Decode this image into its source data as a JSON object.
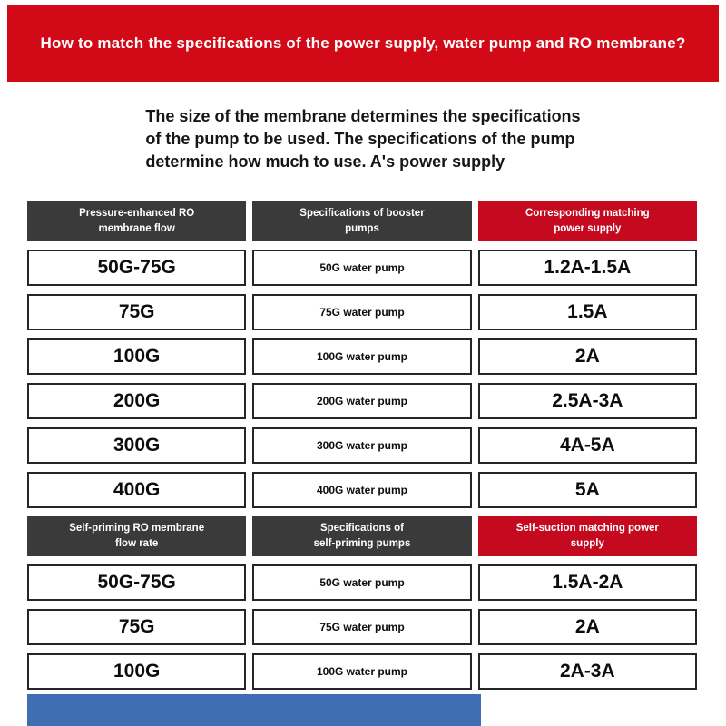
{
  "banner": {
    "title": "How to match the specifications of the power supply, water pump and RO membrane?"
  },
  "intro": {
    "text": "The size of the membrane determines the specifications\nof the pump to be used. The specifications of the pump\ndetermine how much to use. A's power supply"
  },
  "colors": {
    "banner_red": "#d20a17",
    "header_red": "#c50a20",
    "header_dark": "#3a3a3a",
    "bottom_blue": "#3f6eb5"
  },
  "table": {
    "sections": [
      {
        "headers": [
          "Pressure-enhanced RO\nmembrane flow",
          "Specifications of booster\npumps",
          "Corresponding matching\npower supply"
        ],
        "rows": [
          [
            "50G-75G",
            "50G water pump",
            "1.2A-1.5A"
          ],
          [
            "75G",
            "75G water pump",
            "1.5A"
          ],
          [
            "100G",
            "100G water pump",
            "2A"
          ],
          [
            "200G",
            "200G water pump",
            "2.5A-3A"
          ],
          [
            "300G",
            "300G water pump",
            "4A-5A"
          ],
          [
            "400G",
            "400G water pump",
            "5A"
          ]
        ]
      },
      {
        "headers": [
          "Self-priming RO membrane\nflow rate",
          "Specifications of\nself-priming pumps",
          "Self-suction matching power\nsupply"
        ],
        "rows": [
          [
            "50G-75G",
            "50G water pump",
            "1.5A-2A"
          ],
          [
            "75G",
            "75G water pump",
            "2A"
          ],
          [
            "100G",
            "100G water pump",
            "2A-3A"
          ]
        ]
      }
    ]
  }
}
